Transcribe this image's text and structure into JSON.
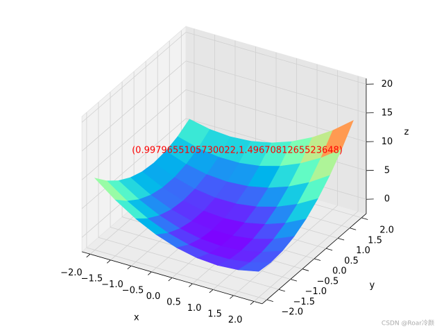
{
  "chart_data": {
    "type": "surface",
    "x": [
      -2,
      -1.5,
      -1,
      -0.5,
      0,
      0.5,
      1,
      1.5,
      2
    ],
    "y": [
      -2,
      -1.5,
      -1,
      -0.5,
      0,
      0.5,
      1,
      1.5,
      2
    ],
    "z": [
      [
        10,
        7.25,
        5,
        3.25,
        2,
        1.25,
        1,
        1.25,
        2
      ],
      [
        7.75,
        5.25,
        3.25,
        1.75,
        0.75,
        0.25,
        0.25,
        0.75,
        1.75
      ],
      [
        6,
        3.75,
        2,
        0.75,
        0,
        -0.25,
        0,
        0.75,
        2
      ],
      [
        4.75,
        2.75,
        1.25,
        0.25,
        -0.25,
        -0.25,
        0.25,
        1.25,
        2.75
      ],
      [
        4,
        2.25,
        1,
        0.25,
        0,
        0.25,
        1,
        2.25,
        4
      ],
      [
        3.75,
        2.25,
        1.25,
        0.75,
        0.75,
        1.25,
        2.25,
        3.75,
        5.75
      ],
      [
        4,
        2.75,
        2,
        1.75,
        2,
        2.75,
        4,
        5.75,
        8
      ],
      [
        4.75,
        3.75,
        3.25,
        3.25,
        3.75,
        4.75,
        6.25,
        8.25,
        10.75
      ],
      [
        6,
        5.25,
        5,
        5.25,
        6,
        7.25,
        9,
        11.25,
        14
      ]
    ],
    "colormap": "rainbow",
    "xlabel": "x",
    "ylabel": "y",
    "zlabel": "z",
    "xlim": [
      -2.2,
      2.2
    ],
    "ylim": [
      -2.2,
      2.2
    ],
    "zlim": [
      -2.5,
      21
    ],
    "xticks": [
      {
        "value": -2,
        "label": "−2.0"
      },
      {
        "value": -1.5,
        "label": "−1.5"
      },
      {
        "value": -1,
        "label": "−1.0"
      },
      {
        "value": -0.5,
        "label": "−0.5"
      },
      {
        "value": 0,
        "label": "0.0"
      },
      {
        "value": 0.5,
        "label": "0.5"
      },
      {
        "value": 1,
        "label": "1.0"
      },
      {
        "value": 1.5,
        "label": "1.5"
      },
      {
        "value": 2,
        "label": "2.0"
      }
    ],
    "yticks": [
      {
        "value": -2,
        "label": "−2.0"
      },
      {
        "value": -1.5,
        "label": "−1.5"
      },
      {
        "value": -1,
        "label": "−1.0"
      },
      {
        "value": -0.5,
        "label": "−0.5"
      },
      {
        "value": 0,
        "label": "0.0"
      },
      {
        "value": 0.5,
        "label": "0.5"
      },
      {
        "value": 1,
        "label": "1.0"
      },
      {
        "value": 1.5,
        "label": "1.5"
      },
      {
        "value": 2,
        "label": "2.0"
      }
    ],
    "zticks": [
      0,
      5,
      10,
      15,
      20
    ],
    "grid": true,
    "annotation": "(0.9979655105730022,1.4967081265523648)",
    "annotation_color": "#ff0000"
  },
  "watermark": "CSDN @Roar冷颜"
}
